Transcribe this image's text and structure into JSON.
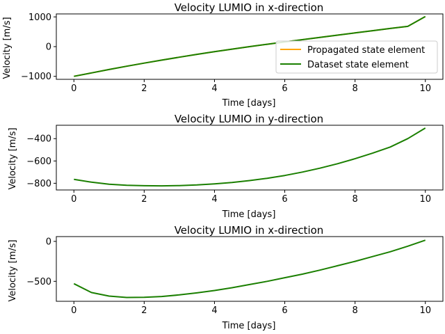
{
  "chart_data": [
    {
      "type": "line",
      "title": "Velocity LUMIO in x-direction",
      "xlabel": "Time [days]",
      "ylabel": "Velocity [m/s]",
      "xlim": [
        -0.5,
        10.5
      ],
      "ylim": [
        -1100,
        1100
      ],
      "xticks": [
        0,
        2,
        4,
        6,
        8,
        10
      ],
      "yticks": [
        -1000,
        0,
        1000
      ],
      "ytick_labels": [
        "−1000",
        "0",
        "1000"
      ],
      "grid": false,
      "legend": "lower-right",
      "x": [
        0,
        0.5,
        1,
        1.5,
        2,
        2.5,
        3,
        3.5,
        4,
        4.5,
        5,
        5.5,
        6,
        6.5,
        7,
        7.5,
        8,
        8.5,
        9,
        9.5,
        10
      ],
      "series": [
        {
          "name": "Propagated state element",
          "color": "#ffa500",
          "values": [
            -1000,
            -885,
            -770,
            -660,
            -555,
            -455,
            -355,
            -260,
            -170,
            -85,
            0,
            80,
            160,
            235,
            310,
            385,
            460,
            535,
            610,
            680,
            1010
          ]
        },
        {
          "name": "Dataset state element",
          "color": "#1a7f00",
          "values": [
            -1000,
            -885,
            -770,
            -660,
            -555,
            -455,
            -355,
            -260,
            -170,
            -85,
            0,
            80,
            160,
            235,
            310,
            385,
            460,
            535,
            610,
            680,
            1010
          ]
        }
      ]
    },
    {
      "type": "line",
      "title": "Velocity LUMIO in y-direction",
      "xlabel": "Time [days]",
      "ylabel": "Velocity [m/s]",
      "xlim": [
        -0.5,
        10.5
      ],
      "ylim": [
        -860,
        -280
      ],
      "xticks": [
        0,
        2,
        4,
        6,
        8,
        10
      ],
      "yticks": [
        -800,
        -600,
        -400
      ],
      "ytick_labels": [
        "−800",
        "−600",
        "−400"
      ],
      "grid": false,
      "x": [
        0,
        0.5,
        1,
        1.5,
        2,
        2.5,
        3,
        3.5,
        4,
        4.5,
        5,
        5.5,
        6,
        6.5,
        7,
        7.5,
        8,
        8.5,
        9,
        9.5,
        10
      ],
      "series": [
        {
          "color": "#1a7f00",
          "values": [
            -765,
            -790,
            -808,
            -818,
            -822,
            -823,
            -821,
            -815,
            -806,
            -793,
            -776,
            -755,
            -730,
            -700,
            -665,
            -625,
            -580,
            -530,
            -475,
            -400,
            -305
          ]
        }
      ]
    },
    {
      "type": "line",
      "title": "Velocity LUMIO in x-direction",
      "xlabel": "Time [days]",
      "ylabel": "Velocity [m/s]",
      "xlim": [
        -0.5,
        10.5
      ],
      "ylim": [
        -750,
        60
      ],
      "xticks": [
        0,
        2,
        4,
        6,
        8,
        10
      ],
      "yticks": [
        -500,
        0
      ],
      "ytick_labels": [
        "−500",
        "0"
      ],
      "grid": false,
      "x": [
        0,
        0.5,
        1,
        1.5,
        2,
        2.5,
        3,
        3.5,
        4,
        4.5,
        5,
        5.5,
        6,
        6.5,
        7,
        7.5,
        8,
        8.5,
        9,
        9.5,
        10
      ],
      "series": [
        {
          "color": "#1a7f00",
          "values": [
            -530,
            -640,
            -685,
            -702,
            -700,
            -690,
            -670,
            -645,
            -615,
            -580,
            -540,
            -500,
            -455,
            -410,
            -360,
            -305,
            -250,
            -190,
            -130,
            -60,
            15
          ]
        }
      ]
    }
  ]
}
